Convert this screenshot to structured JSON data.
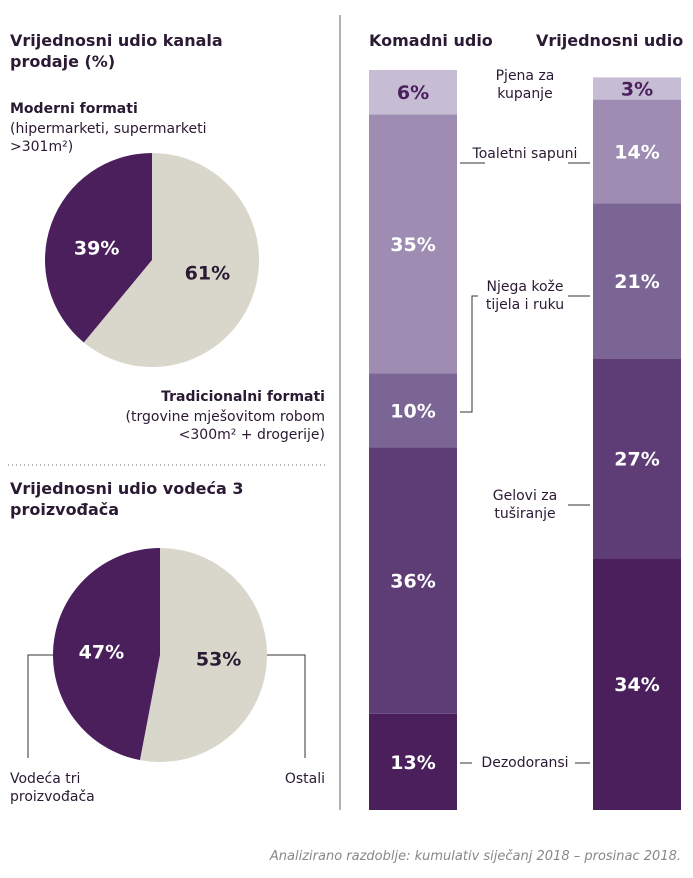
{
  "chart_data": [
    {
      "type": "pie",
      "title": "Vrijednosni udio kanala prodaje (%)",
      "categories": [
        "Moderni formati",
        "Tradicionalni formati"
      ],
      "category_details": [
        "(hipermarketi, supermarketi >301m²)",
        "(trgovine mješovitom robom <300m² + drogerije)"
      ],
      "values": [
        39,
        61
      ],
      "value_labels": [
        "39%",
        "61%"
      ],
      "colors": [
        "#4a1f5c",
        "#d9d7cc"
      ],
      "label_colors": [
        "#ffffff",
        "#2a1a33"
      ]
    },
    {
      "type": "pie",
      "title": "Vrijednosni udio vodeća 3 proizvođača",
      "categories": [
        "Vodeća tri proizvođača",
        "Ostali"
      ],
      "values": [
        47,
        53
      ],
      "value_labels": [
        "47%",
        "53%"
      ],
      "colors": [
        "#4a1f5c",
        "#d9d7cc"
      ],
      "label_colors": [
        "#ffffff",
        "#2a1a33"
      ]
    },
    {
      "type": "stacked_bar",
      "categories": [
        "Komadni udio",
        "Vrijednosni udio"
      ],
      "ylim": [
        0,
        100
      ],
      "series": [
        {
          "name": "Dezodoransi",
          "color": "#4a1f5c",
          "label_color": "#ffffff",
          "values": [
            13,
            34
          ],
          "value_labels": [
            "13%",
            "34%"
          ]
        },
        {
          "name": "Gelovi za tuširanje",
          "color": "#5e3d77",
          "label_color": "#ffffff",
          "values": [
            36,
            27
          ],
          "value_labels": [
            "36%",
            "27%"
          ]
        },
        {
          "name": "Njega kože tijela i ruku",
          "color": "#7a6595",
          "label_color": "#ffffff",
          "values": [
            10,
            21
          ],
          "value_labels": [
            "10%",
            "21%"
          ]
        },
        {
          "name": "Toaletni sapuni",
          "color": "#9e8cb3",
          "label_color": "#ffffff",
          "values": [
            35,
            14
          ],
          "value_labels": [
            "35%",
            "14%"
          ]
        },
        {
          "name": "Pjena za kupanje",
          "color": "#c6bdd5",
          "label_color": "#4a1f5c",
          "values": [
            6,
            3
          ],
          "value_labels": [
            "6%",
            "3%"
          ]
        }
      ]
    }
  ],
  "footnote": "Analizirano razdoblje: kumulativ siječanj 2018 – prosinac 2018."
}
